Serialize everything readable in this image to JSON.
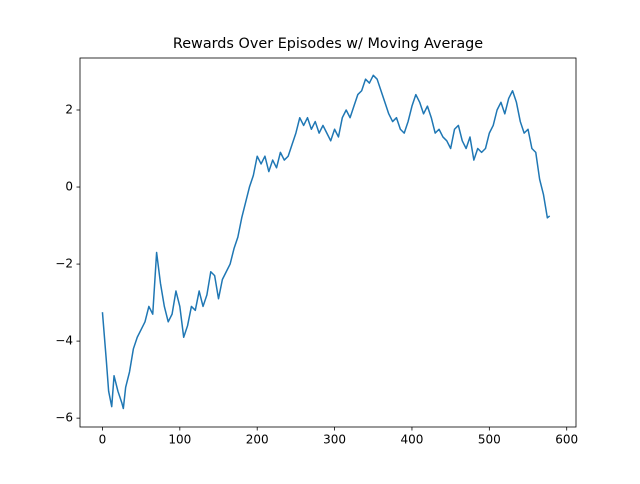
{
  "chart_data": {
    "type": "line",
    "title": "Rewards Over Episodes w/ Moving Average",
    "x": [
      0,
      5,
      8,
      12,
      15,
      20,
      25,
      27,
      30,
      35,
      40,
      45,
      50,
      55,
      60,
      65,
      70,
      75,
      80,
      85,
      90,
      95,
      100,
      105,
      110,
      115,
      120,
      125,
      130,
      135,
      140,
      145,
      150,
      155,
      160,
      165,
      170,
      175,
      180,
      185,
      190,
      195,
      200,
      205,
      210,
      215,
      220,
      225,
      230,
      235,
      240,
      245,
      250,
      255,
      260,
      265,
      270,
      275,
      280,
      285,
      290,
      295,
      300,
      305,
      310,
      315,
      320,
      325,
      330,
      335,
      340,
      345,
      350,
      355,
      360,
      365,
      370,
      375,
      380,
      385,
      390,
      395,
      400,
      405,
      410,
      415,
      420,
      425,
      430,
      435,
      440,
      445,
      450,
      455,
      460,
      465,
      470,
      475,
      480,
      485,
      490,
      495,
      500,
      505,
      510,
      515,
      520,
      525,
      530,
      535,
      540,
      545,
      550,
      555,
      560,
      565,
      570,
      575,
      578
    ],
    "series": [
      {
        "color": "#1f77b4",
        "values": [
          -3.25,
          -4.5,
          -5.3,
          -5.7,
          -4.9,
          -5.3,
          -5.6,
          -5.75,
          -5.2,
          -4.8,
          -4.2,
          -3.9,
          -3.7,
          -3.5,
          -3.1,
          -3.3,
          -1.7,
          -2.5,
          -3.1,
          -3.5,
          -3.3,
          -2.7,
          -3.1,
          -3.9,
          -3.6,
          -3.1,
          -3.2,
          -2.7,
          -3.1,
          -2.8,
          -2.2,
          -2.3,
          -2.9,
          -2.4,
          -2.2,
          -2.0,
          -1.6,
          -1.3,
          -0.8,
          -0.4,
          0.0,
          0.3,
          0.8,
          0.6,
          0.8,
          0.4,
          0.7,
          0.5,
          0.9,
          0.7,
          0.8,
          1.1,
          1.4,
          1.8,
          1.6,
          1.8,
          1.5,
          1.7,
          1.4,
          1.6,
          1.4,
          1.2,
          1.5,
          1.3,
          1.8,
          2.0,
          1.8,
          2.1,
          2.4,
          2.5,
          2.8,
          2.7,
          2.9,
          2.8,
          2.5,
          2.2,
          1.9,
          1.7,
          1.8,
          1.5,
          1.4,
          1.7,
          2.1,
          2.4,
          2.2,
          1.9,
          2.1,
          1.8,
          1.4,
          1.5,
          1.3,
          1.2,
          1.0,
          1.5,
          1.6,
          1.2,
          1.0,
          1.3,
          0.7,
          1.0,
          0.9,
          1.0,
          1.4,
          1.6,
          2.0,
          2.2,
          1.9,
          2.3,
          2.5,
          2.2,
          1.7,
          1.4,
          1.5,
          1.0,
          0.9,
          0.2,
          -0.2,
          -0.8,
          -0.75
        ]
      }
    ],
    "xlim": [
      -29,
      612
    ],
    "ylim": [
      -6.23,
      3.35
    ],
    "xticks": [
      0,
      100,
      200,
      300,
      400,
      500,
      600
    ],
    "yticks": [
      {
        "value": -6,
        "label": "−6"
      },
      {
        "value": -4,
        "label": "−4"
      },
      {
        "value": -2,
        "label": "−2"
      },
      0,
      2
    ],
    "grid": false
  }
}
